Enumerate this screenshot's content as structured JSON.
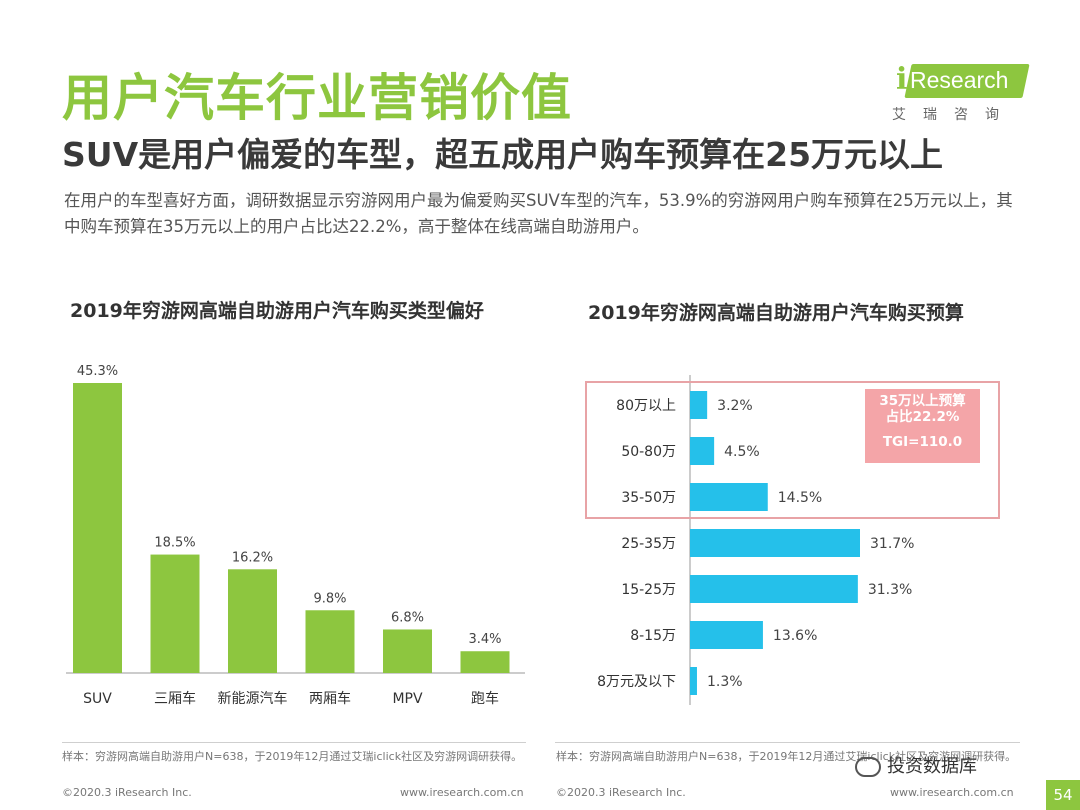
{
  "header": {
    "title": "用户汽车行业营销价值",
    "subtitle": "SUV是用户偏爱的车型，超五成用户购车预算在25万元以上",
    "intro": "在用户的车型喜好方面，调研数据显示穷游网用户最为偏爱购买SUV车型的汽车，53.9%的穷游网用户购车预算在25万元以上，其中购车预算在35万元以上的用户占比达22.2%，高于整体在线高端自助游用户。"
  },
  "logo": {
    "brand": "iResearch",
    "brand_i": "i",
    "brand_rest": "Research",
    "cn": "艾瑞咨询"
  },
  "colors": {
    "green": "#8dc63f",
    "blue": "#25c0ea",
    "highlight_border": "#e8a3a6",
    "badge": "#f4a5a8"
  },
  "chart_data": [
    {
      "type": "bar",
      "title": "2019年穷游网高端自助游用户汽车购买类型偏好",
      "categories": [
        "SUV",
        "三厢车",
        "新能源汽车",
        "两厢车",
        "MPV",
        "跑车"
      ],
      "values": [
        45.3,
        18.5,
        16.2,
        9.8,
        6.8,
        3.4
      ],
      "labels": [
        "45.3%",
        "18.5%",
        "16.2%",
        "9.8%",
        "6.8%",
        "3.4%"
      ],
      "unit": "%",
      "xlabel": "",
      "ylabel": "",
      "ylim": [
        0,
        45.3
      ]
    },
    {
      "type": "bar",
      "orientation": "horizontal",
      "title": "2019年穷游网高端自助游用户汽车购买预算",
      "categories": [
        "80万以上",
        "50-80万",
        "35-50万",
        "25-35万",
        "15-25万",
        "8-15万",
        "8万元及以下"
      ],
      "values": [
        3.2,
        4.5,
        14.5,
        31.7,
        31.3,
        13.6,
        1.3
      ],
      "labels": [
        "3.2%",
        "4.5%",
        "14.5%",
        "31.7%",
        "31.3%",
        "13.6%",
        "1.3%"
      ],
      "unit": "%",
      "xlim": [
        0,
        31.7
      ],
      "highlight": {
        "categories": [
          "80万以上",
          "50-80万",
          "35-50万"
        ],
        "note_line1": "35万以上预算",
        "note_line2": "占比22.2%",
        "tgi": "TGI=110.0"
      }
    }
  ],
  "notes": {
    "left": "样本：穷游网高端自助游用户N=638，于2019年12月通过艾瑞iclick社区及穷游网调研获得。",
    "right": "样本：穷游网高端自助游用户N=638，于2019年12月通过艾瑞iclick社区及穷游网调研获得。"
  },
  "footer": {
    "copyright": "©2020.3 iResearch Inc.",
    "url": "www.iresearch.com.cn",
    "page": "54",
    "watermark": "投资数据库"
  }
}
